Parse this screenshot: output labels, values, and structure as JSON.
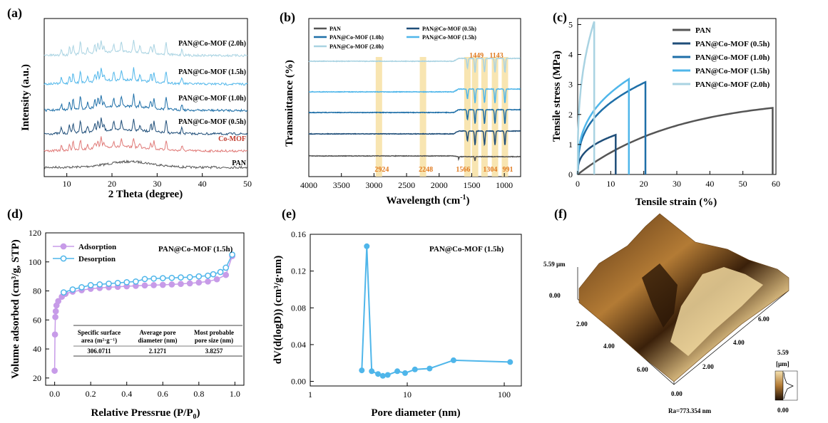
{
  "panels": {
    "a": "(a)",
    "b": "(b)",
    "c": "(c)",
    "d": "(d)",
    "e": "(e)",
    "f": "(f)"
  },
  "colors": {
    "pan": "#555555",
    "comof": "#e07a78",
    "h05": "#1f4e79",
    "h10": "#1e6fa8",
    "h15": "#4fb6ea",
    "h20": "#a9d3e2",
    "ftir_band": "#f7e2a8",
    "ftir_label": "#e07a20",
    "adsorption": "#c79be8",
    "desorption": "#4fb6ea",
    "afm_dark": "#2a1706",
    "afm_light": "#f5e2b0"
  },
  "chart_data": [
    {
      "id": "a",
      "type": "line",
      "xlabel": "2 Theta (degree)",
      "ylabel": "Intensity (a.u.)",
      "xlim": [
        5,
        50
      ],
      "xticks": [
        "10",
        "20",
        "30",
        "40",
        "50"
      ],
      "series": [
        {
          "name": "PAN",
          "offset": 0
        },
        {
          "name": "Co-MOF",
          "offset": 1
        },
        {
          "name": "PAN@Co-MOF (0.5h)",
          "offset": 2
        },
        {
          "name": "PAN@Co-MOF (1.0h)",
          "offset": 3
        },
        {
          "name": "PAN@Co-MOF (1.5h)",
          "offset": 4
        },
        {
          "name": "PAN@Co-MOF (2.0h)",
          "offset": 5
        }
      ]
    },
    {
      "id": "b",
      "type": "line",
      "xlabel": "Wavelength (cm",
      "xlabel_sup": "-1",
      "xlabel_end": ")",
      "ylabel": "Transmittance (%)",
      "xlim": [
        4000,
        750
      ],
      "xticks": [
        "4000",
        "3500",
        "3000",
        "2500",
        "2000",
        "1500",
        "1000"
      ],
      "legend": [
        "PAN",
        "PAN@Co-MOF (0.5h)",
        "PAN@Co-MOF (1.0h)",
        "PAN@Co-MOF (1.5h)",
        "PAN@Co-MOF (2.0h)"
      ],
      "bands": [
        2924,
        2248,
        1566,
        1449,
        1304,
        1143,
        991
      ],
      "band_labels_bottom": [
        "2924",
        "2248",
        "1566",
        "1304",
        "991"
      ],
      "band_labels_top": [
        "1449",
        "1143"
      ]
    },
    {
      "id": "c",
      "type": "line",
      "xlabel": "Tensile strain (%)",
      "ylabel": "Tensile stress (MPa)",
      "xlim": [
        0,
        60
      ],
      "ylim": [
        0,
        5.2
      ],
      "xticks": [
        "0",
        "10",
        "20",
        "30",
        "40",
        "50",
        "60"
      ],
      "yticks": [
        "0",
        "1",
        "2",
        "3",
        "4",
        "5"
      ],
      "legend_position": "top-right",
      "series": [
        {
          "name": "PAN",
          "max_strain": 59,
          "max_stress": 2.22
        },
        {
          "name": "PAN@Co-MOF (0.5h)",
          "max_strain": 11.5,
          "max_stress": 1.32
        },
        {
          "name": "PAN@Co-MOF (1.0h)",
          "max_strain": 20.5,
          "max_stress": 3.08
        },
        {
          "name": "PAN@Co-MOF (1.5h)",
          "max_strain": 15.5,
          "max_stress": 3.18
        },
        {
          "name": "PAN@Co-MOF (2.0h)",
          "max_strain": 5,
          "max_stress": 5.1
        }
      ]
    },
    {
      "id": "d",
      "type": "line",
      "title": "PAN@Co-MOF (1.5h)",
      "xlabel": "Relative Pressrue (P/P",
      "xlabel_sub": "0",
      "xlabel_end": ")",
      "ylabel": "Volume adsorbed (cm³/g, STP)",
      "xlim": [
        -0.05,
        1.05
      ],
      "ylim": [
        15,
        120
      ],
      "xticks": [
        "0.0",
        "0.2",
        "0.4",
        "0.6",
        "0.8",
        "1.0"
      ],
      "yticks": [
        "20",
        "40",
        "60",
        "80",
        "100",
        "120"
      ],
      "series": [
        {
          "name": "Adsorption",
          "x": [
            0.0,
            0.002,
            0.004,
            0.006,
            0.01,
            0.02,
            0.04,
            0.06,
            0.1,
            0.15,
            0.2,
            0.25,
            0.3,
            0.35,
            0.4,
            0.45,
            0.5,
            0.55,
            0.6,
            0.65,
            0.7,
            0.75,
            0.8,
            0.85,
            0.9,
            0.95,
            0.985
          ],
          "y": [
            25,
            50,
            62,
            66,
            70,
            73,
            76,
            78,
            79.5,
            80.5,
            81.5,
            82,
            82.5,
            82.8,
            83.2,
            83.5,
            83.8,
            84,
            84.2,
            84.5,
            84.8,
            85.2,
            85.8,
            86.5,
            88,
            91,
            104
          ]
        },
        {
          "name": "Desorption",
          "x": [
            0.985,
            0.95,
            0.92,
            0.88,
            0.85,
            0.8,
            0.75,
            0.7,
            0.65,
            0.6,
            0.55,
            0.5,
            0.45,
            0.4,
            0.35,
            0.3,
            0.25,
            0.2,
            0.15,
            0.1,
            0.05
          ],
          "y": [
            105,
            96,
            93,
            91.5,
            90.5,
            90,
            89.5,
            89.3,
            89,
            88.8,
            88.5,
            88.2,
            86.5,
            86,
            85.5,
            85,
            84.5,
            84,
            82.5,
            81,
            79
          ]
        }
      ],
      "table": {
        "headers": [
          [
            "Specific surface",
            "area (m²·g⁻¹)"
          ],
          [
            "Average pore",
            "diameter (nm)"
          ],
          [
            "Most probable",
            "pore size (nm)"
          ]
        ],
        "values": [
          "306.0711",
          "2.1271",
          "3.8257"
        ]
      }
    },
    {
      "id": "e",
      "type": "scatter",
      "title": "PAN@Co-MOF (1.5h)",
      "xlabel": "Pore diameter (nm)",
      "ylabel": "dV(d(logD)) (cm³/g·nm)",
      "xscale": "log",
      "xlim": [
        1,
        150
      ],
      "ylim": [
        -0.005,
        0.16
      ],
      "xticks": [
        "1",
        "10",
        "100"
      ],
      "yticks": [
        "0.00",
        "0.04",
        "0.08",
        "0.12",
        "0.16"
      ],
      "x": [
        3.4,
        3.83,
        4.3,
        5.0,
        5.6,
        6.3,
        7.9,
        9.5,
        12,
        17,
        30,
        115
      ],
      "y": [
        0.012,
        0.147,
        0.011,
        0.008,
        0.006,
        0.007,
        0.011,
        0.009,
        0.013,
        0.014,
        0.023,
        0.021
      ]
    }
  ],
  "afm": {
    "z_top": "5.59 µm",
    "z_bottom": "0.00",
    "left_ticks": [
      "6.00",
      "4.00",
      "2.00"
    ],
    "right_ticks": [
      "6.00",
      "4.00",
      "2.00"
    ],
    "corner": "0.00",
    "scale_max": "5.59",
    "scale_unit": "[µm]",
    "scale_min": "0.00",
    "roughness": "Ra=773.354 nm"
  }
}
